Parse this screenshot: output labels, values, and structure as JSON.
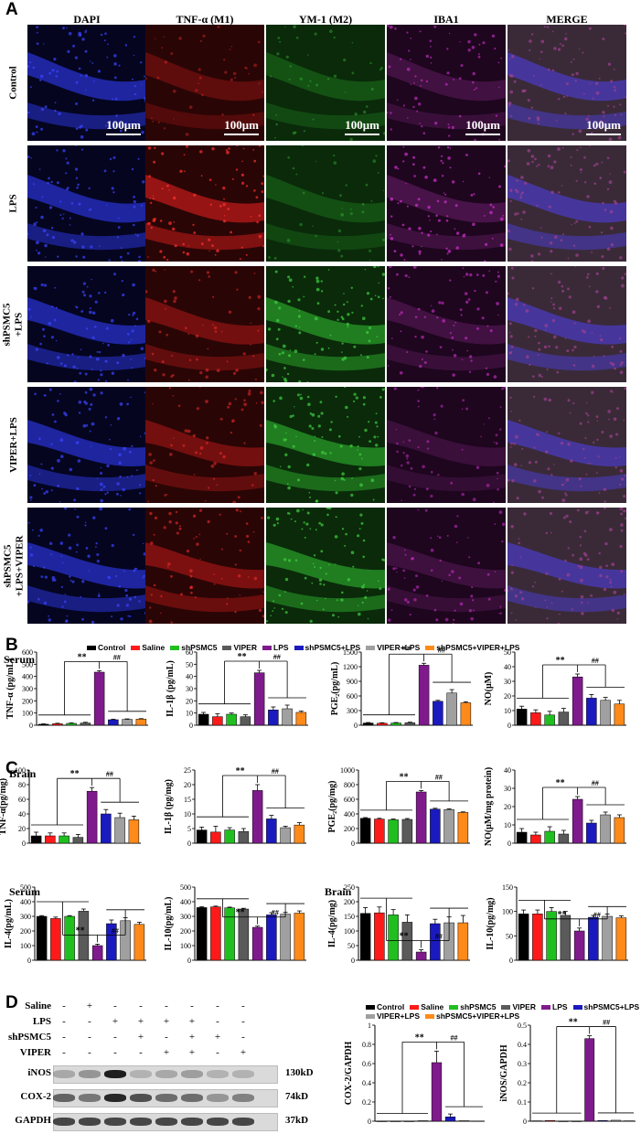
{
  "colors": {
    "Control": "#000000",
    "Saline": "#ff1a1a",
    "shPSMC5": "#1fbf1f",
    "VIPER": "#5a5a5a",
    "LPS": "#7f1a8c",
    "shPSMC5+LPS": "#1a1abf",
    "VIPER+LPS": "#a0a0a0",
    "shPSMC5+VIPER+LPS": "#ff8a1a"
  },
  "panelA": {
    "label": "A",
    "columns": [
      "DAPI",
      "TNF-α (M1)",
      "YM-1 (M2)",
      "IBA1",
      "MERGE"
    ],
    "column_icons": [
      "dapi-stain-icon",
      "tnf-stain-icon",
      "ym1-stain-icon",
      "iba1-stain-icon",
      "merge-stain-icon"
    ],
    "rows": [
      "Control",
      "LPS",
      "shPSMC5\n+LPS",
      "VIPER+LPS",
      "shPSMC5\n+LPS+VIPER"
    ],
    "scale_bar": "100μm"
  },
  "panelB": {
    "label": "B",
    "legend": [
      "Control",
      "Saline",
      "shPSMC5",
      "VIPER",
      "LPS",
      "shPSMC5+LPS",
      "VIPER+LPS",
      "shPSMC5+VIPER+LPS"
    ],
    "serum_title": "Serum",
    "brain_title": "Brain"
  },
  "panelC": {
    "label": "C",
    "serum_title": "Serum",
    "brain_title": "Brain"
  },
  "panelD": {
    "label": "D",
    "row_labels": [
      "Saline",
      "LPS",
      "shPSMC5",
      "VIPER"
    ],
    "signs": [
      [
        "-",
        "+",
        "-",
        "-",
        "-",
        "-",
        "-",
        "-"
      ],
      [
        "-",
        "-",
        "+",
        "+",
        "+",
        "+",
        "-",
        "-"
      ],
      [
        "-",
        "-",
        "-",
        "+",
        "-",
        "+",
        "+",
        "-"
      ],
      [
        "-",
        "-",
        "-",
        "-",
        "+",
        "+",
        "-",
        "+"
      ]
    ],
    "bands": [
      {
        "name": "iNOS",
        "size": "130kD"
      },
      {
        "name": "COX-2",
        "size": "74kD"
      },
      {
        "name": "GAPDH",
        "size": "37kD"
      }
    ],
    "legend": [
      "Control",
      "Saline",
      "shPSMC5",
      "VIPER",
      "LPS",
      "shPSMC5+LPS",
      "VIPER+LPS",
      "shPSMC5+VIPER+LPS"
    ]
  },
  "chart_data": [
    {
      "id": "B1",
      "type": "bar",
      "ylabel": "TNF-α (pg/mL)",
      "ylim": [
        0,
        600
      ],
      "yticks": [
        0,
        100,
        200,
        300,
        400,
        500,
        600
      ],
      "categories": [
        "Control",
        "Saline",
        "shPSMC5",
        "VIPER",
        "LPS",
        "shPSMC5+LPS",
        "VIPER+LPS",
        "shPSMC5+VIPER+LPS"
      ],
      "values": [
        8,
        12,
        15,
        18,
        435,
        45,
        48,
        50
      ],
      "errors": [
        3,
        4,
        4,
        6,
        12,
        4,
        4,
        4
      ],
      "sig": [
        "**",
        "##"
      ]
    },
    {
      "id": "B2",
      "type": "bar",
      "ylabel": "IL-1β (pg/mL)",
      "ylim": [
        0,
        60
      ],
      "yticks": [
        0,
        10,
        20,
        30,
        40,
        50,
        60
      ],
      "categories": [
        "Control",
        "Saline",
        "shPSMC5",
        "VIPER",
        "LPS",
        "shPSMC5+LPS",
        "VIPER+LPS",
        "shPSMC5+VIPER+LPS"
      ],
      "values": [
        9,
        7,
        9,
        7,
        43,
        12.5,
        13.5,
        10.5
      ],
      "errors": [
        1.5,
        2.5,
        1,
        1.5,
        2,
        2.5,
        3,
        1
      ],
      "sig": [
        "**",
        "##"
      ]
    },
    {
      "id": "B3",
      "type": "bar",
      "ylabel": "PGE₂(pg/mL)",
      "ylim": [
        0,
        1500
      ],
      "yticks": [
        0,
        300,
        600,
        900,
        1200,
        1500
      ],
      "categories": [
        "Control",
        "Saline",
        "shPSMC5",
        "VIPER",
        "LPS",
        "shPSMC5+LPS",
        "VIPER+LPS",
        "shPSMC5+VIPER+LPS"
      ],
      "values": [
        45,
        40,
        45,
        50,
        1230,
        490,
        660,
        460
      ],
      "errors": [
        10,
        10,
        10,
        12,
        40,
        20,
        70,
        20
      ],
      "sig": [
        "**",
        "##"
      ]
    },
    {
      "id": "B4",
      "type": "bar",
      "ylabel": "NO(μM)",
      "ylim": [
        0,
        50
      ],
      "yticks": [
        0,
        10,
        20,
        30,
        40,
        50
      ],
      "categories": [
        "Control",
        "Saline",
        "shPSMC5",
        "VIPER",
        "LPS",
        "shPSMC5+LPS",
        "VIPER+LPS",
        "shPSMC5+VIPER+LPS"
      ],
      "values": [
        11,
        8.5,
        7,
        9,
        33,
        18.5,
        17,
        14.5
      ],
      "errors": [
        2,
        2,
        2.5,
        2.5,
        2,
        2.5,
        2,
        2.5
      ],
      "sig": [
        "**",
        "##"
      ]
    },
    {
      "id": "B5",
      "type": "bar",
      "ylabel": "TNF-α(pg/mg)",
      "ylim": [
        0,
        100
      ],
      "yticks": [
        0,
        20,
        40,
        60,
        80,
        100
      ],
      "categories": [
        "Control",
        "Saline",
        "shPSMC5",
        "VIPER",
        "LPS",
        "shPSMC5+LPS",
        "VIPER+LPS",
        "shPSMC5+VIPER+LPS"
      ],
      "values": [
        10,
        10,
        10,
        8,
        71,
        40,
        35,
        32
      ],
      "errors": [
        5,
        4,
        4,
        4,
        5,
        6,
        6,
        5
      ],
      "sig": [
        "**",
        "##"
      ]
    },
    {
      "id": "B6",
      "type": "bar",
      "ylabel": "IL-1β (pg/mg)",
      "ylim": [
        0,
        25
      ],
      "yticks": [
        0,
        5,
        10,
        15,
        20,
        25
      ],
      "categories": [
        "Control",
        "Saline",
        "shPSMC5",
        "VIPER",
        "LPS",
        "shPSMC5+LPS",
        "VIPER+LPS",
        "shPSMC5+VIPER+LPS"
      ],
      "values": [
        4.5,
        3.8,
        4.5,
        4,
        18,
        8.3,
        5.3,
        6.2
      ],
      "errors": [
        1,
        2,
        0.8,
        1,
        2,
        1.2,
        0.5,
        0.8
      ],
      "sig": [
        "**",
        "##"
      ]
    },
    {
      "id": "B7",
      "type": "bar",
      "ylabel": "PGE₂(pg/mg)",
      "ylim": [
        0,
        1000
      ],
      "yticks": [
        0,
        200,
        400,
        600,
        800,
        1000
      ],
      "categories": [
        "Control",
        "Saline",
        "shPSMC5",
        "VIPER",
        "LPS",
        "shPSMC5+LPS",
        "VIPER+LPS",
        "shPSMC5+VIPER+LPS"
      ],
      "values": [
        340,
        330,
        320,
        325,
        700,
        465,
        460,
        420
      ],
      "errors": [
        10,
        10,
        10,
        12,
        20,
        12,
        10,
        8
      ],
      "sig": [
        "**",
        "##"
      ]
    },
    {
      "id": "B8",
      "type": "bar",
      "ylabel": "NO(μM/mg protein)",
      "ylim": [
        0,
        40
      ],
      "yticks": [
        0,
        10,
        20,
        30,
        40
      ],
      "categories": [
        "Control",
        "Saline",
        "shPSMC5",
        "VIPER",
        "LPS",
        "shPSMC5+LPS",
        "VIPER+LPS",
        "shPSMC5+VIPER+LPS"
      ],
      "values": [
        6,
        4.5,
        6.5,
        5,
        24,
        11,
        15.5,
        14
      ],
      "errors": [
        2,
        1.5,
        2.5,
        2,
        1.5,
        1.5,
        1.5,
        1.5
      ],
      "sig": [
        "**",
        "##"
      ]
    },
    {
      "id": "C1",
      "type": "bar",
      "ylabel": "IL-4(pg/mL)",
      "ylim": [
        0,
        500
      ],
      "yticks": [
        0,
        100,
        200,
        300,
        400,
        500
      ],
      "categories": [
        "Control",
        "Saline",
        "shPSMC5",
        "VIPER",
        "LPS",
        "shPSMC5+LPS",
        "VIPER+LPS",
        "shPSMC5+VIPER+LPS"
      ],
      "values": [
        300,
        285,
        300,
        335,
        100,
        250,
        270,
        245
      ],
      "errors": [
        5,
        10,
        5,
        15,
        10,
        25,
        20,
        15
      ],
      "sig": [
        "**",
        "##"
      ]
    },
    {
      "id": "C2",
      "type": "bar",
      "ylabel": "IL-10(pg/mL)",
      "ylim": [
        0,
        500
      ],
      "yticks": [
        0,
        100,
        200,
        300,
        400,
        500
      ],
      "categories": [
        "Control",
        "Saline",
        "shPSMC5",
        "VIPER",
        "LPS",
        "shPSMC5+LPS",
        "VIPER+LPS",
        "shPSMC5+VIPER+LPS"
      ],
      "values": [
        360,
        365,
        358,
        350,
        225,
        310,
        315,
        322
      ],
      "errors": [
        5,
        5,
        5,
        5,
        8,
        15,
        12,
        15
      ],
      "sig": [
        "**",
        "##"
      ]
    },
    {
      "id": "C3",
      "type": "bar",
      "ylabel": "IL-4(pg/mg)",
      "ylim": [
        0,
        250
      ],
      "yticks": [
        0,
        50,
        100,
        150,
        200,
        250
      ],
      "categories": [
        "Control",
        "Saline",
        "shPSMC5",
        "VIPER",
        "LPS",
        "shPSMC5+LPS",
        "VIPER+LPS",
        "shPSMC5+VIPER+LPS"
      ],
      "values": [
        160,
        162,
        155,
        130,
        28,
        125,
        128,
        128
      ],
      "errors": [
        20,
        20,
        18,
        25,
        8,
        15,
        20,
        25
      ],
      "sig": [
        "**",
        "##"
      ]
    },
    {
      "id": "C4",
      "type": "bar",
      "ylabel": "IL-10(pg/mg)",
      "ylim": [
        0,
        150
      ],
      "yticks": [
        0,
        50,
        100,
        150
      ],
      "categories": [
        "Control",
        "Saline",
        "shPSMC5",
        "VIPER",
        "LPS",
        "shPSMC5+LPS",
        "VIPER+LPS",
        "shPSMC5+VIPER+LPS"
      ],
      "values": [
        95,
        95,
        100,
        92,
        60,
        88,
        90,
        87
      ],
      "errors": [
        8,
        8,
        8,
        8,
        6,
        4,
        5,
        4
      ],
      "sig": [
        "**",
        "##"
      ]
    },
    {
      "id": "D1",
      "type": "bar",
      "ylabel": "COX-2/GAPDH",
      "ylim": [
        0,
        1.0
      ],
      "yticks": [
        0,
        0.2,
        0.4,
        0.6,
        0.8,
        1.0
      ],
      "categories": [
        "Control",
        "Saline",
        "shPSMC5",
        "VIPER",
        "LPS",
        "shPSMC5+LPS",
        "VIPER+LPS",
        "shPSMC5+VIPER+LPS"
      ],
      "values": [
        0,
        0,
        0,
        0.005,
        0.61,
        0.045,
        0.005,
        0.002
      ],
      "errors": [
        0,
        0,
        0,
        0,
        0.12,
        0.03,
        0,
        0
      ],
      "sig": [
        "**",
        "##"
      ]
    },
    {
      "id": "D2",
      "type": "bar",
      "ylabel": "iNOS/GAPDH",
      "ylim": [
        0,
        0.5
      ],
      "yticks": [
        0,
        0.1,
        0.2,
        0.3,
        0.4,
        0.5
      ],
      "categories": [
        "Control",
        "Saline",
        "shPSMC5",
        "VIPER",
        "LPS",
        "shPSMC5+LPS",
        "VIPER+LPS",
        "shPSMC5+VIPER+LPS"
      ],
      "values": [
        0.002,
        0.004,
        0,
        0,
        0.43,
        0.004,
        0.005,
        0.002
      ],
      "errors": [
        0,
        0,
        0,
        0,
        0.015,
        0,
        0,
        0
      ],
      "sig": [
        "**",
        "##"
      ]
    }
  ]
}
